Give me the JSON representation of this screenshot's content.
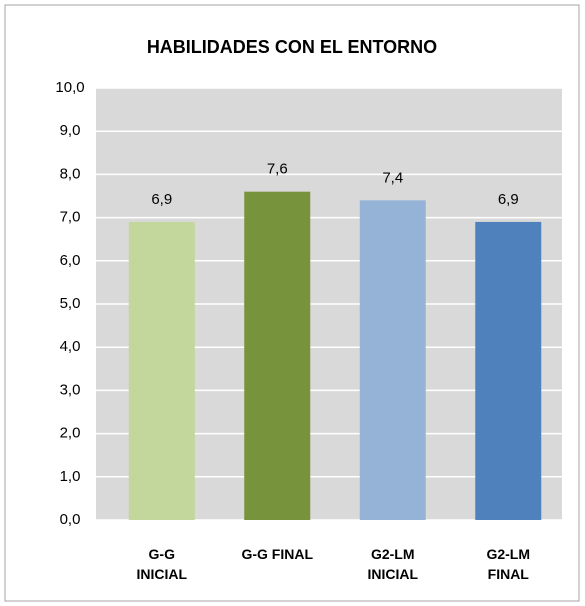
{
  "chart_data": {
    "type": "bar",
    "title": "HABILIDADES CON EL ENTORNO",
    "categories": [
      "G-G INICIAL",
      "G-G FINAL",
      "G2-LM INICIAL",
      "G2-LM FINAL"
    ],
    "values": [
      6.9,
      7.6,
      7.4,
      6.9
    ],
    "value_labels": [
      "6,9",
      "7,6",
      "7,4",
      "6,9"
    ],
    "colors": [
      "#c3d69b",
      "#77933c",
      "#95b3d7",
      "#4f81bd"
    ],
    "ylim": [
      0,
      10
    ],
    "yticks": [
      {
        "value": 0,
        "label": "0,0"
      },
      {
        "value": 1,
        "label": "1,0"
      },
      {
        "value": 2,
        "label": "2,0"
      },
      {
        "value": 3,
        "label": "3,0"
      },
      {
        "value": 4,
        "label": "4,0"
      },
      {
        "value": 5,
        "label": "5,0"
      },
      {
        "value": 6,
        "label": "6,0"
      },
      {
        "value": 7,
        "label": "7,0"
      },
      {
        "value": 8,
        "label": "8,0"
      },
      {
        "value": 9,
        "label": "9,0"
      },
      {
        "value": 10,
        "label": "10,0"
      }
    ],
    "grid": true
  }
}
